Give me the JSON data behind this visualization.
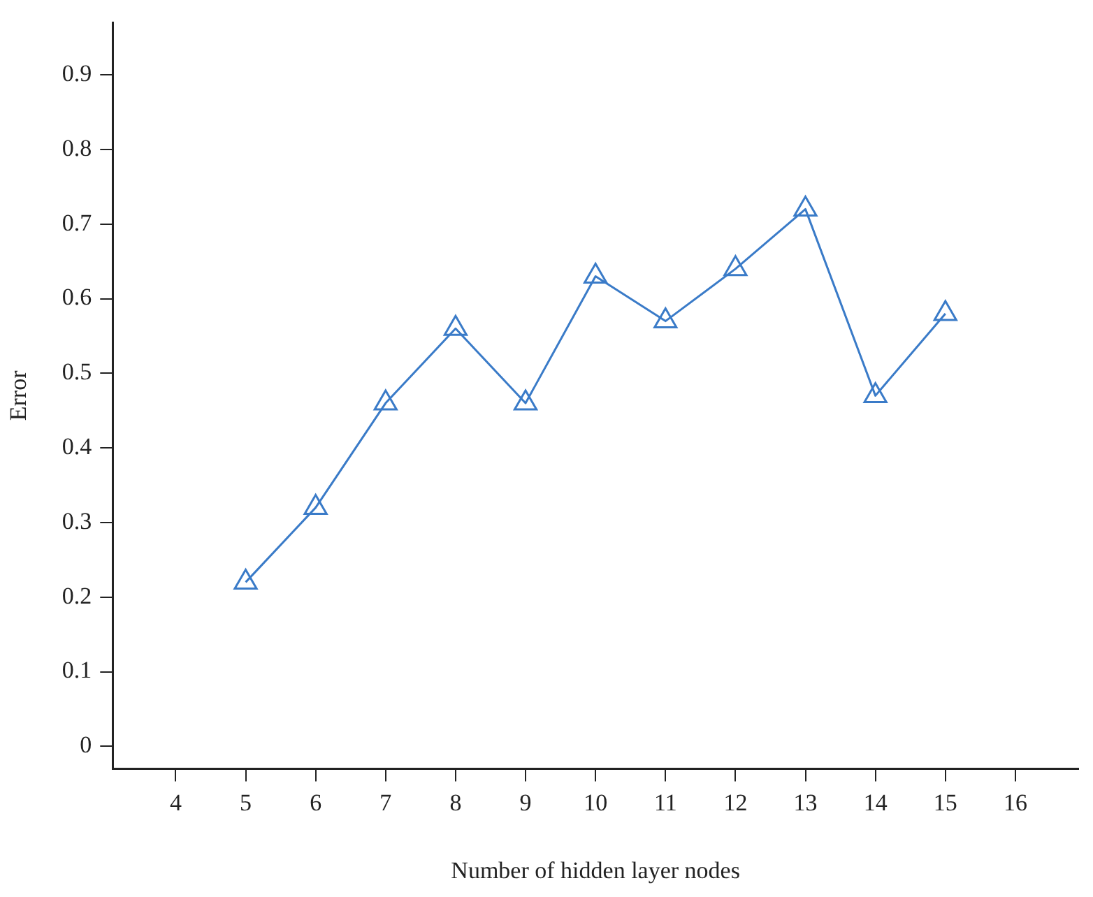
{
  "chart_data": {
    "type": "line",
    "xlabel": "Number of hidden layer nodes",
    "ylabel": "Error",
    "x": [
      5,
      6,
      7,
      8,
      9,
      10,
      11,
      12,
      13,
      14,
      15
    ],
    "series": [
      {
        "color": "#3a7bc8",
        "values": [
          0.22,
          0.32,
          0.46,
          0.56,
          0.46,
          0.63,
          0.57,
          0.64,
          0.72,
          0.47,
          0.58
        ]
      }
    ],
    "xlim": [
      3.1,
      16.9
    ],
    "xticks": [
      4,
      5,
      6,
      7,
      8,
      9,
      10,
      11,
      12,
      13,
      14,
      15,
      16
    ],
    "ylim": [
      -0.03,
      0.97
    ],
    "yticks": [
      0,
      0.1,
      0.2,
      0.3,
      0.4,
      0.5,
      0.6,
      0.7,
      0.8,
      0.9
    ],
    "grid": false,
    "legend": false,
    "marker": "triangle",
    "line_style": "solid"
  }
}
